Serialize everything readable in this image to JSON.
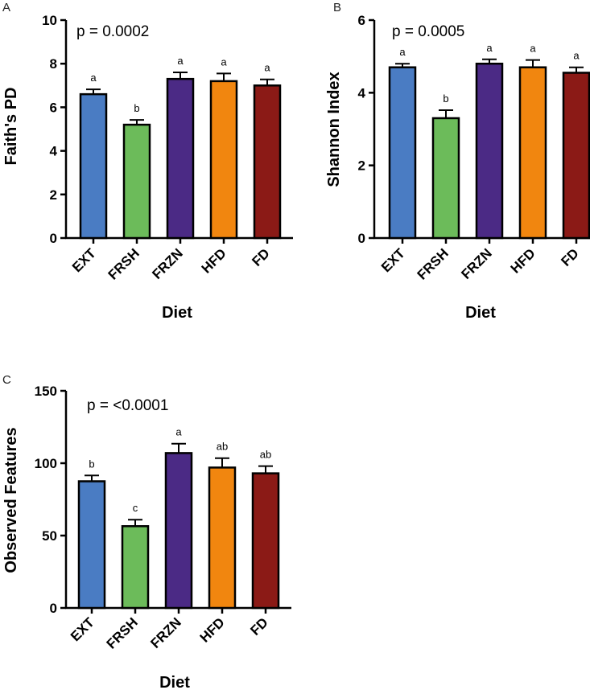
{
  "colors": {
    "EXT": "#4a7cc3",
    "FRSH": "#6cbb5a",
    "FRZN": "#4b2a85",
    "HFD": "#f1860f",
    "FD": "#8b1a16"
  },
  "chart_data": [
    {
      "panel": "A",
      "type": "bar",
      "categories": [
        "EXT",
        "FRSH",
        "FRZN",
        "HFD",
        "FD"
      ],
      "values": [
        6.6,
        5.2,
        7.3,
        7.2,
        7.0
      ],
      "errors": [
        0.22,
        0.22,
        0.3,
        0.35,
        0.28
      ],
      "significance": [
        "a",
        "b",
        "a",
        "a",
        "a"
      ],
      "annotation": "p = 0.0002",
      "xlabel": "Diet",
      "ylabel": "Faith's PD",
      "ylim": [
        0,
        10
      ],
      "yticks": [
        0,
        2,
        4,
        6,
        8,
        10
      ]
    },
    {
      "panel": "B",
      "type": "bar",
      "categories": [
        "EXT",
        "FRSH",
        "FRZN",
        "HFD",
        "FD"
      ],
      "values": [
        4.7,
        3.3,
        4.8,
        4.7,
        4.55
      ],
      "errors": [
        0.1,
        0.22,
        0.12,
        0.2,
        0.15
      ],
      "significance": [
        "a",
        "b",
        "a",
        "a",
        "a"
      ],
      "annotation": "p = 0.0005",
      "xlabel": "Diet",
      "ylabel": "Shannon Index",
      "ylim": [
        0,
        6
      ],
      "yticks": [
        0,
        2,
        4,
        6
      ]
    },
    {
      "panel": "C",
      "type": "bar",
      "categories": [
        "EXT",
        "FRSH",
        "FRZN",
        "HFD",
        "FD"
      ],
      "values": [
        87.5,
        56.5,
        107,
        97,
        93
      ],
      "errors": [
        4,
        4.5,
        6.5,
        6.5,
        5
      ],
      "significance": [
        "b",
        "c",
        "a",
        "ab",
        "ab"
      ],
      "annotation": "p = <0.0001",
      "xlabel": "Diet",
      "ylabel": "Observed Features",
      "ylim": [
        0,
        150
      ],
      "yticks": [
        0,
        50,
        100,
        150
      ]
    }
  ]
}
